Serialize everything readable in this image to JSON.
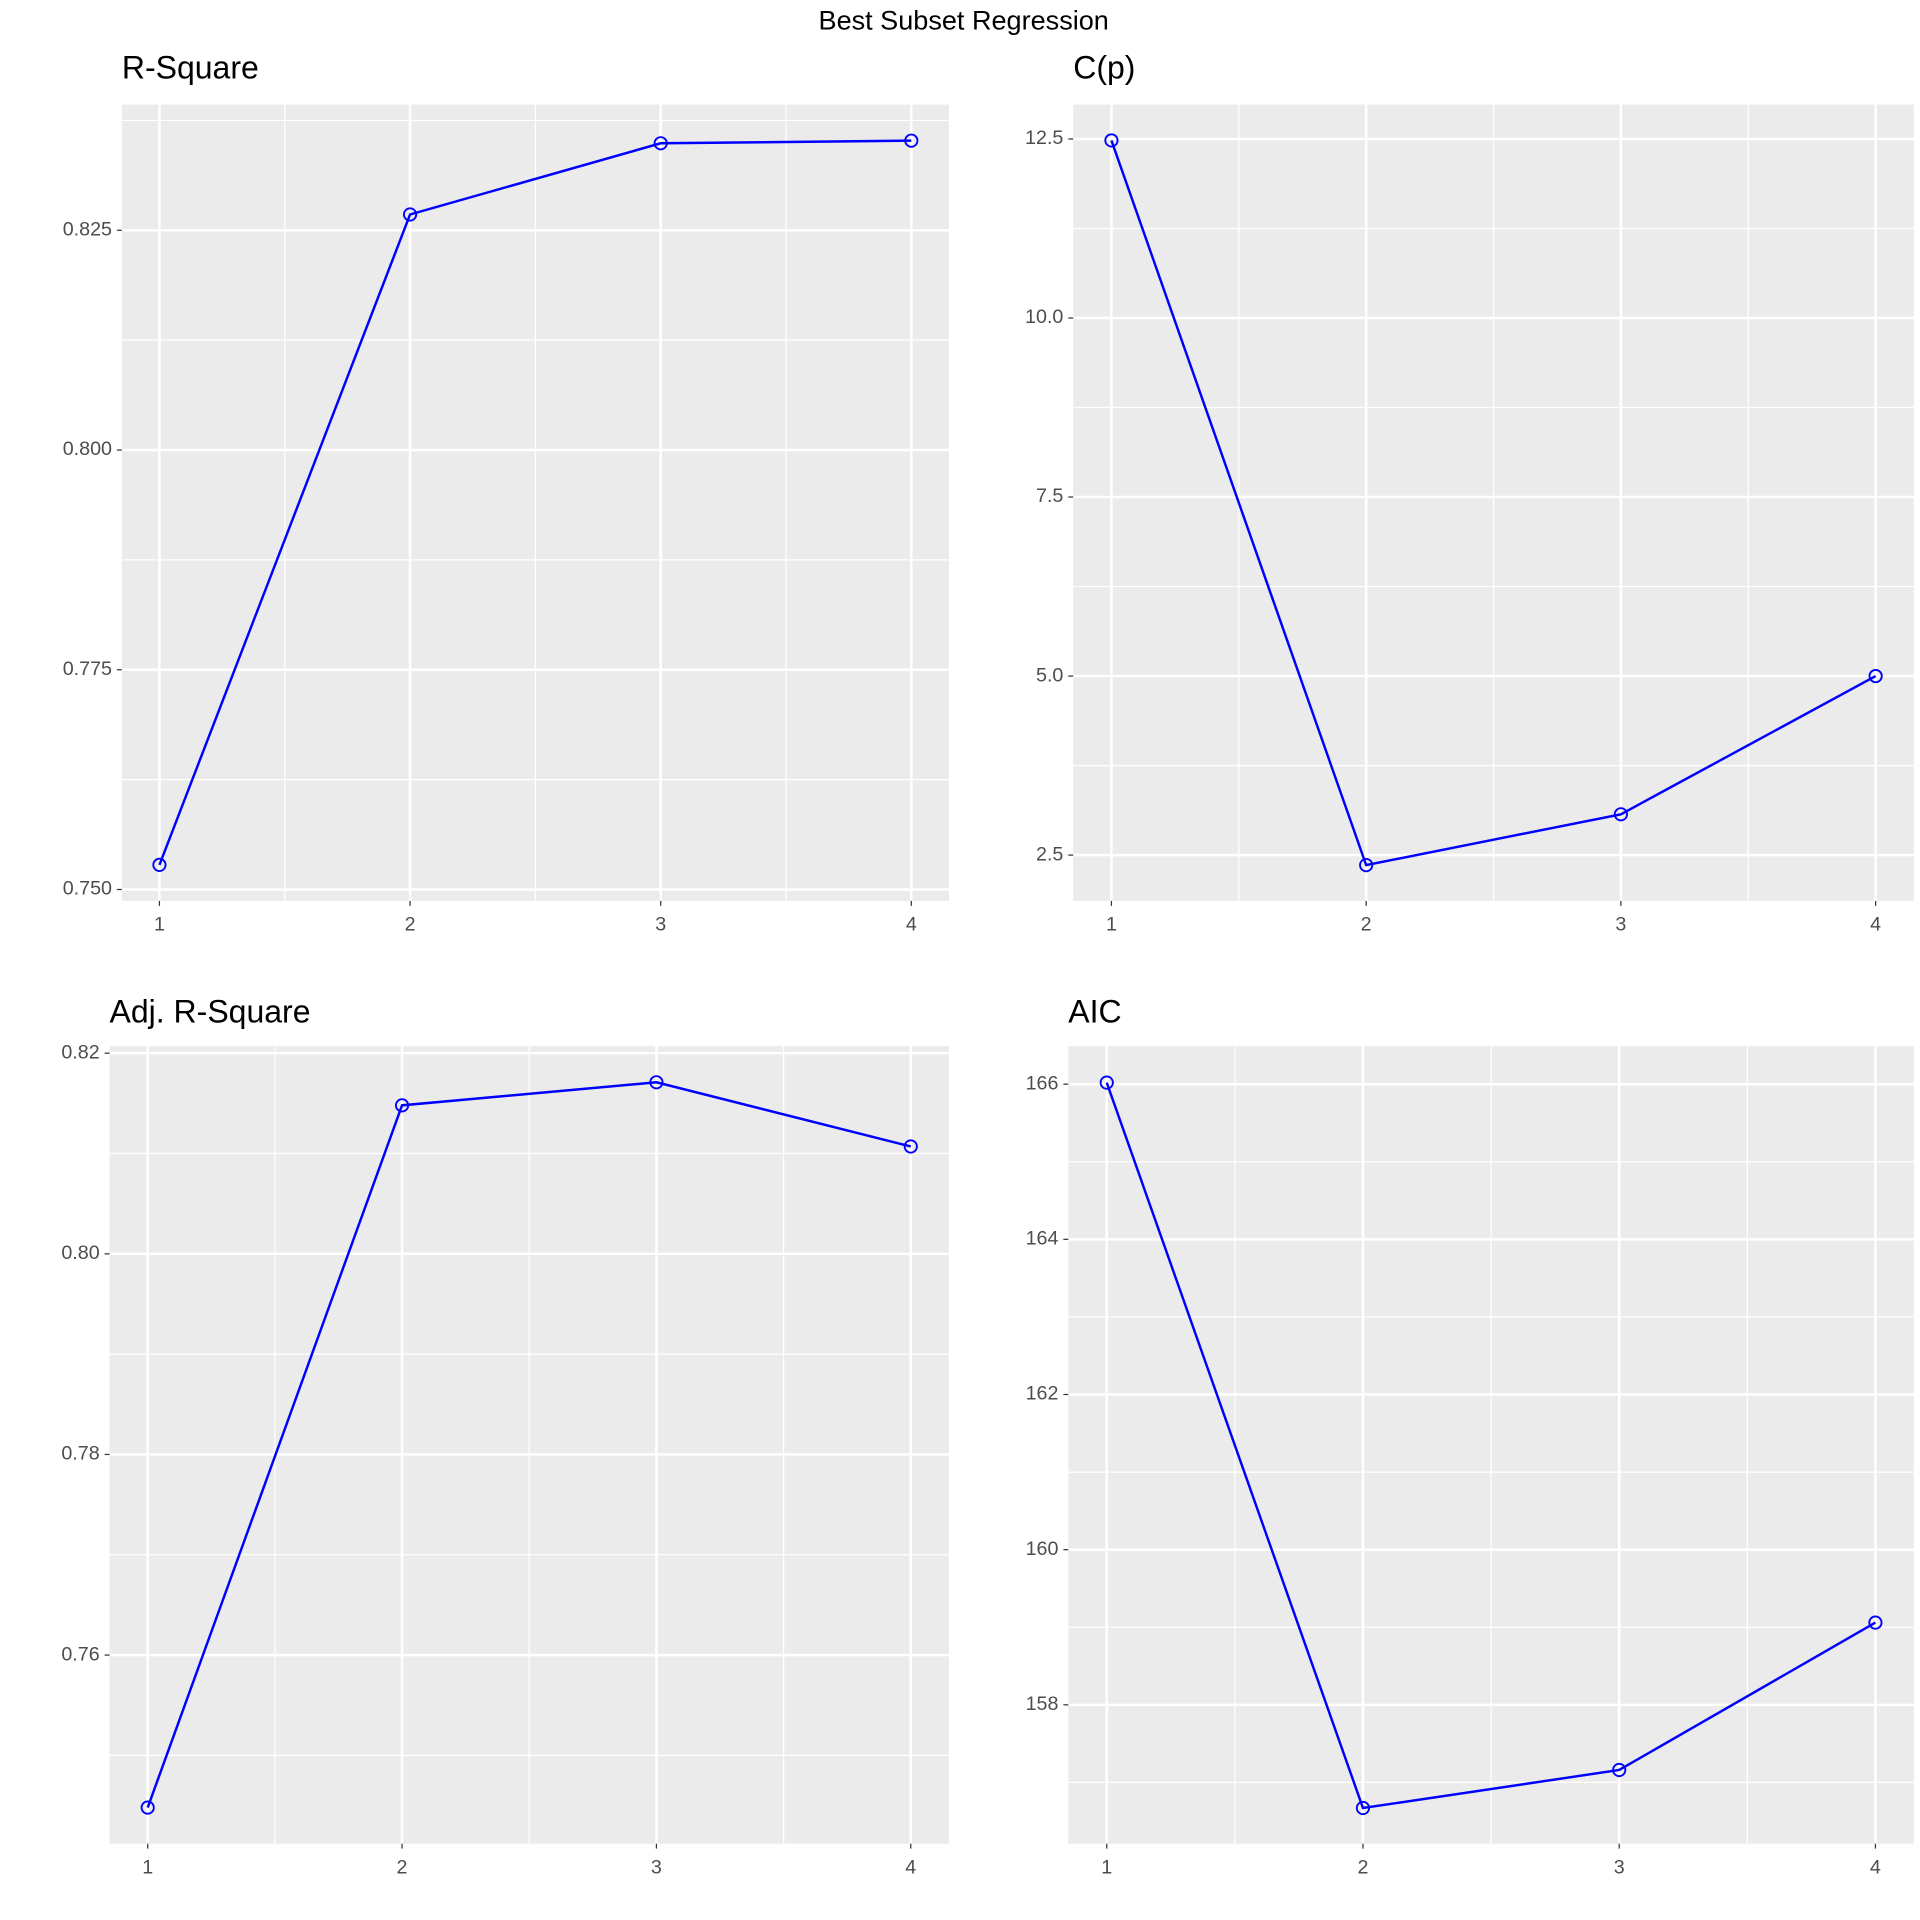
{
  "title": "Best Subset Regression",
  "chart_data": [
    {
      "type": "line",
      "title": "R-Square",
      "x": [
        1,
        2,
        3,
        4
      ],
      "values": [
        0.7528,
        0.8268,
        0.8349,
        0.8352
      ],
      "color": "#0000ff",
      "xlim": [
        0.85,
        4.15
      ],
      "ylim": [
        0.7487,
        0.8393
      ],
      "xticks": [
        1,
        2,
        3,
        4
      ],
      "yticks": [
        {
          "value": 0.75,
          "label": "0.750"
        },
        0.775,
        {
          "value": 0.8,
          "label": "0.800"
        },
        0.825
      ],
      "grid": true
    },
    {
      "type": "line",
      "title": "C(p)",
      "x": [
        1,
        2,
        3,
        4
      ],
      "values": [
        12.48,
        2.36,
        3.07,
        5.0
      ],
      "color": "#0000ff",
      "xlim": [
        0.85,
        4.15
      ],
      "ylim": [
        1.86,
        12.98
      ],
      "xticks": [
        1,
        2,
        3,
        4
      ],
      "yticks": [
        2.5,
        {
          "value": 5,
          "label": "5.0"
        },
        7.5,
        {
          "value": 10,
          "label": "10.0"
        },
        12.5
      ],
      "grid": true
    },
    {
      "type": "line",
      "title": "Adj. R-Square",
      "x": [
        1,
        2,
        3,
        4
      ],
      "values": [
        0.7448,
        0.8148,
        0.8171,
        0.8107
      ],
      "color": "#0000ff",
      "xlim": [
        0.85,
        4.15
      ],
      "ylim": [
        0.7412,
        0.8207
      ],
      "xticks": [
        1,
        2,
        3,
        4
      ],
      "yticks": [
        0.76,
        0.78,
        {
          "value": 0.8,
          "label": "0.80"
        },
        0.82
      ],
      "grid": true
    },
    {
      "type": "line",
      "title": "AIC",
      "x": [
        1,
        2,
        3,
        4
      ],
      "values": [
        166.02,
        156.67,
        157.16,
        159.06
      ],
      "color": "#0000ff",
      "xlim": [
        0.85,
        4.15
      ],
      "ylim": [
        156.21,
        166.49
      ],
      "xticks": [
        1,
        2,
        3,
        4
      ],
      "yticks": [
        158,
        160,
        162,
        164,
        166
      ],
      "grid": true
    }
  ]
}
